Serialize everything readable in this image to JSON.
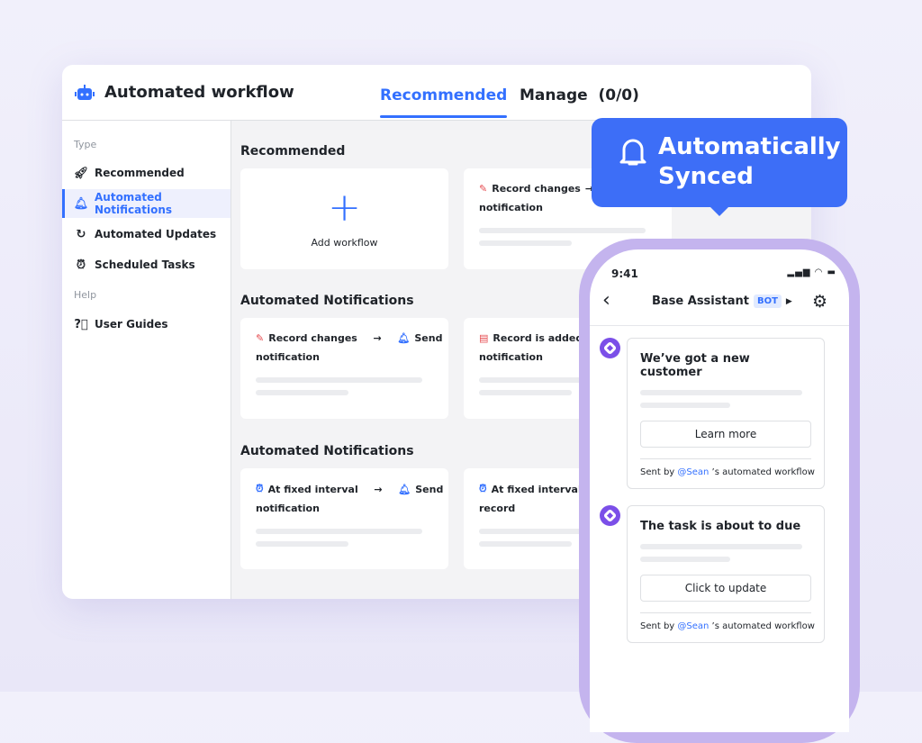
{
  "window": {
    "title": "Automated workflow",
    "icon": "robot-icon",
    "tabs": [
      {
        "label": "Recommended",
        "active": true
      },
      {
        "label": "Manage  (0/0)",
        "active": false
      }
    ]
  },
  "sidebar": {
    "groups": [
      "Type",
      "Help"
    ],
    "items": [
      {
        "label": "Recommended",
        "icon": "rocket-icon"
      },
      {
        "label": "Automated Notifications",
        "icon": "bell-icon",
        "active": true
      },
      {
        "label": "Automated Updates",
        "icon": "refresh-icon"
      },
      {
        "label": "Scheduled Tasks",
        "icon": "alarm-clock-icon"
      },
      {
        "label": "User Guides",
        "icon": "help-circle-icon"
      }
    ]
  },
  "main": {
    "sections": [
      {
        "title": "Recommended",
        "add_label": "Add workflow",
        "cards": [
          {
            "a": "Record changes",
            "arrow": "→",
            "b": "",
            "sub": "notification"
          }
        ]
      },
      {
        "title": "Automated Notifications",
        "cards": [
          {
            "a": "Record changes",
            "arrow": "→",
            "b": "Send",
            "sub": "notification"
          },
          {
            "a": "Record is added",
            "arrow": "",
            "b": "",
            "sub": "notification"
          }
        ]
      },
      {
        "title": "Automated Notifications",
        "cards": [
          {
            "a": "At fixed interval",
            "arrow": "→",
            "b": "Send",
            "sub": "notification"
          },
          {
            "a": "At fixed interval",
            "arrow": "",
            "b": "",
            "sub": "record"
          }
        ]
      }
    ]
  },
  "tooltip": {
    "text": "Automatically Synced",
    "icon": "bell-icon"
  },
  "phone": {
    "time": "9:41",
    "title": "Base Assistant",
    "badge": "BOT",
    "messages": [
      {
        "title": "We’ve got a new customer",
        "button": "Learn more",
        "sent_prefix": "Sent by",
        "mention": "@Sean",
        "sent_suffix": "’s automated workflow"
      },
      {
        "title": "The task is about to due",
        "button": "Click to update",
        "sent_prefix": "Sent by",
        "mention": "@Sean",
        "sent_suffix": "’s automated workflow"
      }
    ]
  },
  "colors": {
    "accent": "#3370ff",
    "tooltip": "#3d6ef7",
    "phone_frame": "#c4b4ee",
    "avatar": "#7b4fe8"
  }
}
